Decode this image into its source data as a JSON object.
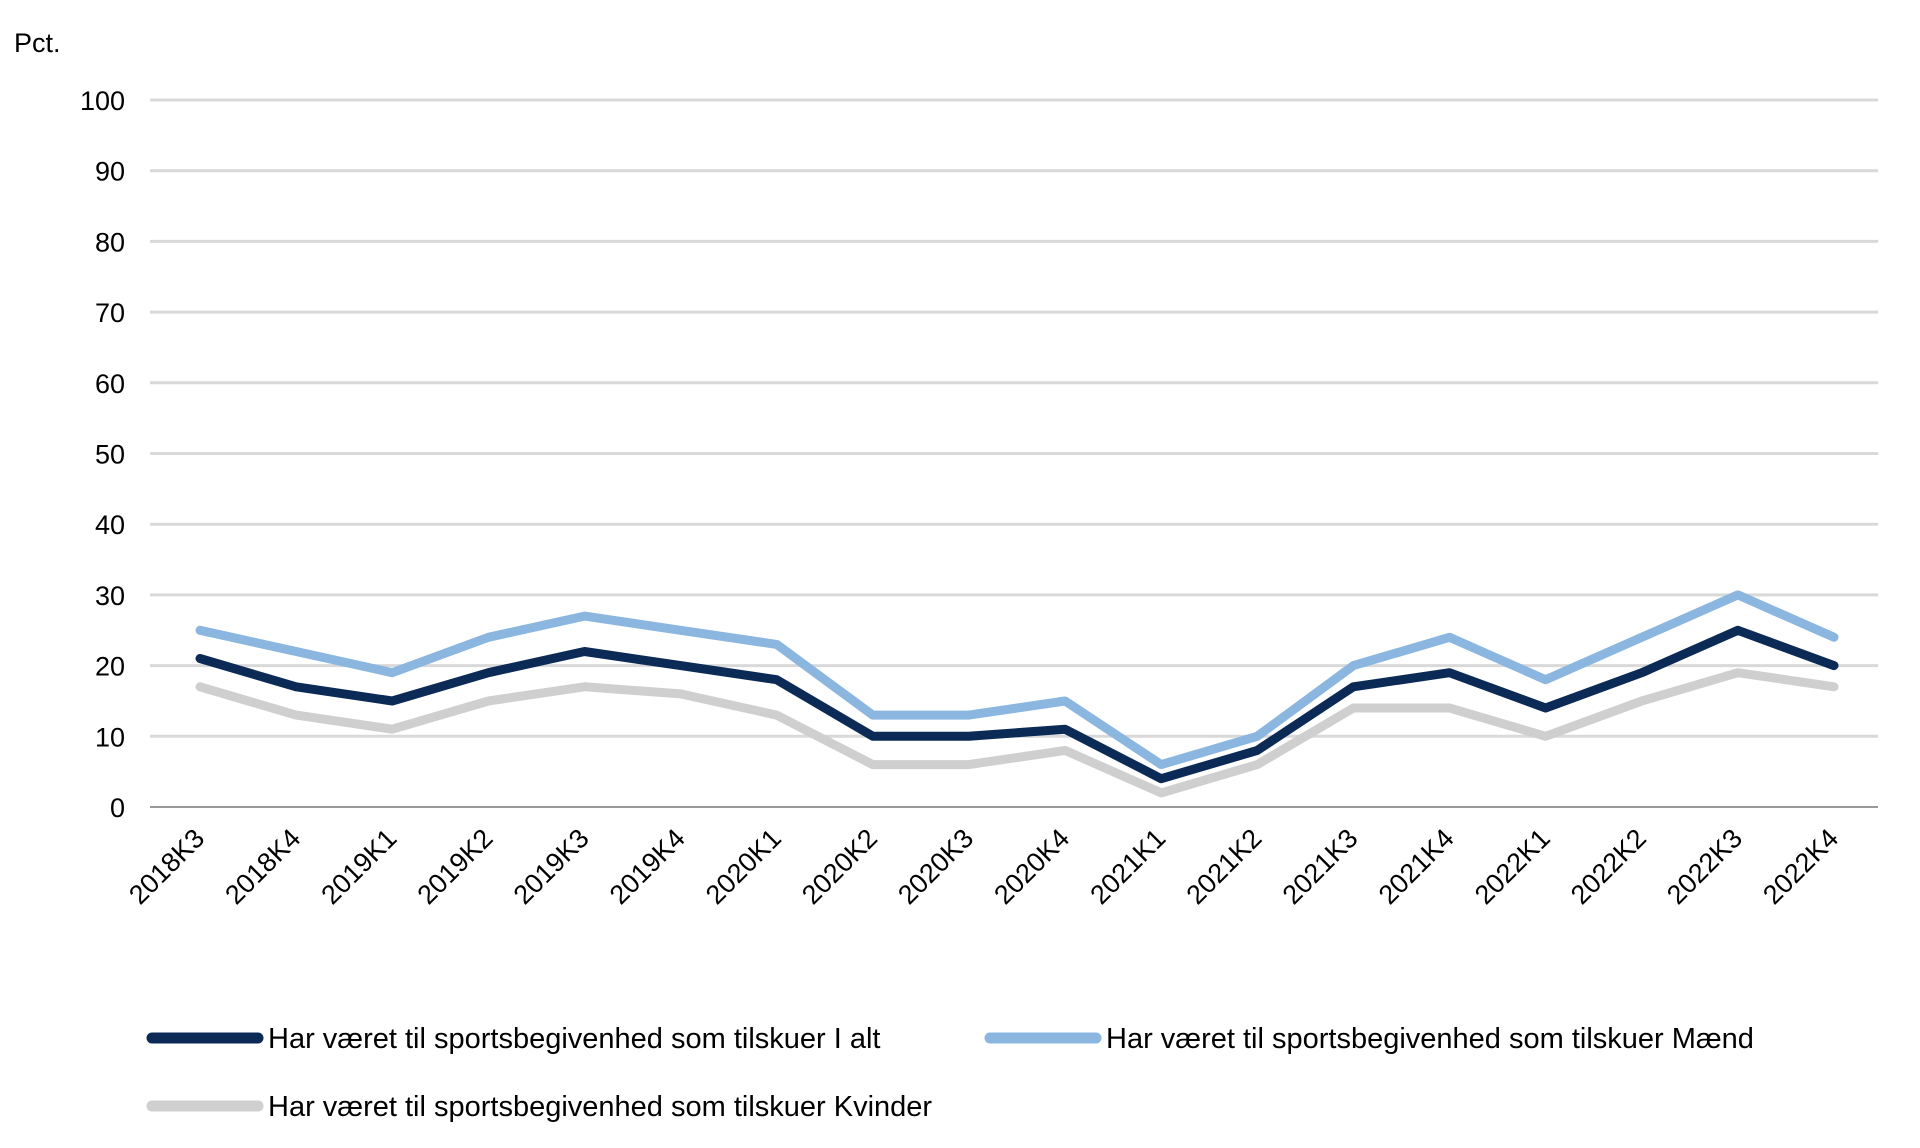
{
  "chart_data": {
    "type": "line",
    "y_unit": "Pct.",
    "x": [
      "2018K3",
      "2018K4",
      "2019K1",
      "2019K2",
      "2019K3",
      "2019K4",
      "2020K1",
      "2020K2",
      "2020K3",
      "2020K4",
      "2021K1",
      "2021K2",
      "2021K3",
      "2021K4",
      "2022K1",
      "2022K2",
      "2022K3",
      "2022K4"
    ],
    "series": [
      {
        "name": "Har været til sportsbegivenhed som tilskuer I alt",
        "color": "#0b2a56",
        "values": [
          21,
          17,
          15,
          19,
          22,
          20,
          18,
          10,
          10,
          11,
          4,
          8,
          17,
          19,
          14,
          19,
          25,
          20
        ]
      },
      {
        "name": "Har været til sportsbegivenhed som tilskuer Mænd",
        "color": "#8ab6e0",
        "values": [
          25,
          22,
          19,
          24,
          27,
          25,
          23,
          13,
          13,
          15,
          6,
          10,
          20,
          24,
          18,
          24,
          30,
          24
        ]
      },
      {
        "name": "Har været til sportsbegivenhed som tilskuer Kvinder",
        "color": "#cfcfcf",
        "values": [
          17,
          13,
          11,
          15,
          17,
          16,
          13,
          6,
          6,
          8,
          2,
          6,
          14,
          14,
          10,
          15,
          19,
          17
        ]
      }
    ],
    "yticks": [
      "0",
      "10",
      "20",
      "30",
      "40",
      "50",
      "60",
      "70",
      "80",
      "90",
      "100"
    ],
    "ylim": [
      0,
      100
    ],
    "grid": true,
    "legend_position": "bottom"
  }
}
